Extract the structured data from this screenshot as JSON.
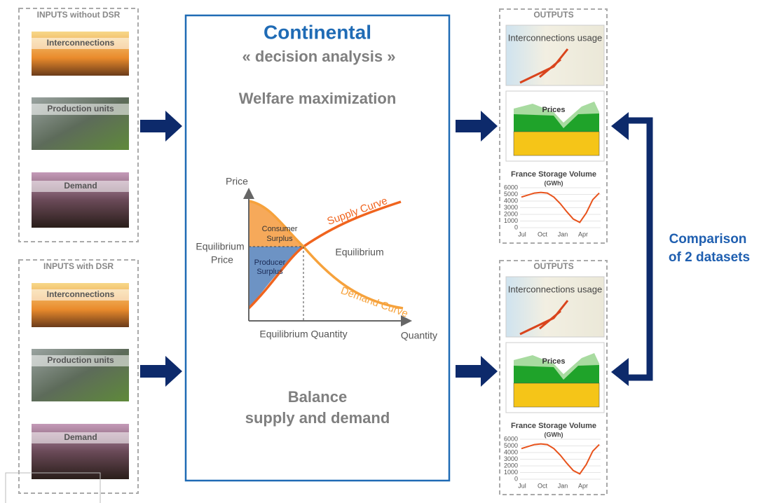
{
  "inputs": [
    {
      "title": "INPUTS without DSR",
      "items": [
        "Interconnections",
        "Production units",
        "Demand"
      ]
    },
    {
      "title": "INPUTS with DSR",
      "items": [
        "Interconnections",
        "Production units",
        "Demand"
      ]
    }
  ],
  "center": {
    "title": "Continental",
    "subtitle": "« decision analysis »",
    "heading": "Welfare maximization",
    "footer": [
      "Balance",
      "supply and demand"
    ],
    "diagram": {
      "y_axis": "Price",
      "x_axis": "Quantity",
      "supply": "Supply Curve",
      "demand": "Demand Curve",
      "consumer": [
        "Consumer",
        "Surplus"
      ],
      "producer": [
        "Producer",
        "Surplus"
      ],
      "eq_price": [
        "Equilibrium",
        "Price"
      ],
      "equilibrium": "Equilibrium",
      "eq_quantity": "Equilibrium  Quantity"
    }
  },
  "outputs": [
    {
      "title": "OUTPUTS",
      "map_title": "Interconnections usage",
      "prices_title": "Prices",
      "storage": {
        "title": "France Storage Volume",
        "unit": "(GWh)",
        "ylim": [
          0,
          6000
        ],
        "yticks": [
          0,
          1000,
          2000,
          3000,
          4000,
          5000,
          6000
        ],
        "months": [
          "Jul",
          "Oct",
          "Jan",
          "Apr"
        ],
        "values": [
          4600,
          4900,
          5200,
          5300,
          5200,
          4600,
          3600,
          2400,
          1300,
          800,
          2200,
          4200,
          5200
        ]
      }
    },
    {
      "title": "OUTPUTS",
      "map_title": "Interconnections usage",
      "prices_title": "Prices",
      "storage": {
        "title": "France Storage Volume",
        "unit": "(GWh)",
        "ylim": [
          0,
          6000
        ],
        "yticks": [
          0,
          1000,
          2000,
          3000,
          4000,
          5000,
          6000
        ],
        "months": [
          "Jul",
          "Oct",
          "Jan",
          "Apr"
        ],
        "values": [
          4600,
          4900,
          5200,
          5300,
          5200,
          4600,
          3600,
          2400,
          1300,
          800,
          2200,
          4200,
          5200
        ]
      }
    }
  ],
  "comparison": [
    "Comparison",
    "of 2 datasets"
  ]
}
